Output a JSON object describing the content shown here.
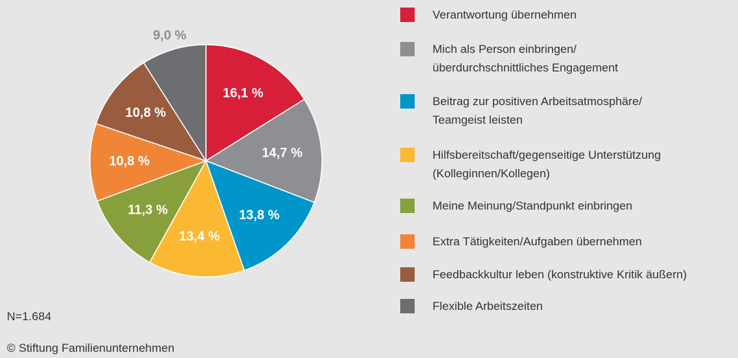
{
  "chart_data": {
    "type": "pie",
    "categories": [
      "Verantwortung übernehmen",
      "Mich als Person einbringen/\nüberdurchschnittliches Engagement",
      "Beitrag zur positiven Arbeitsatmosphäre/\nTeamgeist leisten",
      "Hilfsbereitschaft/gegenseitige Unterstützung\n(Kolleginnen/Kollegen)",
      "Meine Meinung/Standpunkt einbringen",
      "Extra Tätigkeiten/Aufgaben übernehmen",
      "Feedbackkultur leben (konstruktive Kritik äußern)",
      "Flexible Arbeitszeiten"
    ],
    "values": [
      16.1,
      14.7,
      13.8,
      13.4,
      11.3,
      10.8,
      10.8,
      9.0
    ],
    "value_labels": [
      "16,1 %",
      "14,7 %",
      "13,8 %",
      "13,4 %",
      "11,3 %",
      "10,8 %",
      "10,8 %",
      "9,0 %"
    ],
    "colors": [
      "#d71f3a",
      "#8e8f92",
      "#0096c9",
      "#fbb832",
      "#88a03b",
      "#f08538",
      "#9a5c3f",
      "#6d6e71"
    ],
    "note": "N=1.684",
    "source": "© Stiftung Familienunternehmen",
    "legend": "right"
  }
}
